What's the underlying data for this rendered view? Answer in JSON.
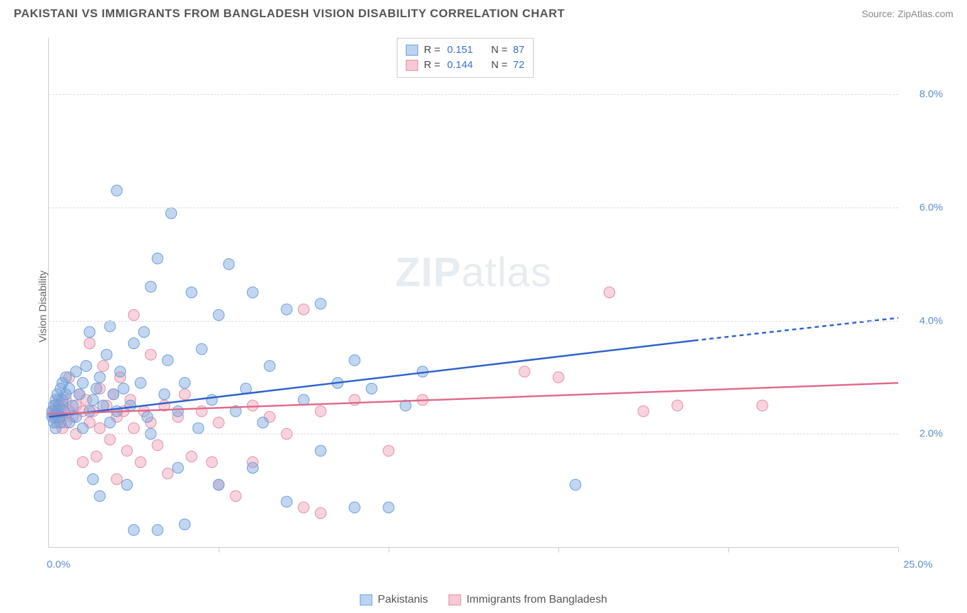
{
  "title": "PAKISTANI VS IMMIGRANTS FROM BANGLADESH VISION DISABILITY CORRELATION CHART",
  "source": "Source: ZipAtlas.com",
  "y_axis_label": "Vision Disability",
  "watermark_bold": "ZIP",
  "watermark_light": "atlas",
  "chart": {
    "type": "scatter",
    "xlim": [
      0,
      25
    ],
    "ylim": [
      0,
      9
    ],
    "x_ticks": [
      0,
      5,
      10,
      15,
      20,
      25
    ],
    "y_grid": [
      2,
      4,
      6,
      8
    ],
    "x_min_label": "0.0%",
    "x_max_label": "25.0%",
    "y_tick_labels": [
      "2.0%",
      "4.0%",
      "6.0%",
      "8.0%"
    ],
    "background_color": "#ffffff",
    "grid_color": "#dddddd",
    "axis_color": "#cccccc",
    "tick_label_color": "#5b8cc9",
    "marker_radius": 8,
    "marker_opacity": 0.55,
    "legend_stats": [
      {
        "swatch_fill": "#bcd4f0",
        "swatch_border": "#6a9fde",
        "r_value": "0.151",
        "n_value": "87"
      },
      {
        "swatch_fill": "#f5c8d4",
        "swatch_border": "#e38fa6",
        "r_value": "0.144",
        "n_value": "72"
      }
    ],
    "legend_r_label": "R =",
    "legend_n_label": "N =",
    "bottom_legend": [
      {
        "label": "Pakistanis",
        "swatch_fill": "#bcd4f0",
        "swatch_border": "#6a9fde"
      },
      {
        "label": "Immigrants from Bangladesh",
        "swatch_fill": "#f5c8d4",
        "swatch_border": "#e38fa6"
      }
    ],
    "series": [
      {
        "name": "Pakistanis",
        "color_fill": "rgba(120,165,220,0.45)",
        "color_stroke": "#6a9fde",
        "trend_color": "#2e62c9",
        "trend_width": 2.5,
        "trend_start": [
          0,
          2.3
        ],
        "trend_end_solid": [
          19,
          3.65
        ],
        "trend_end_dash": [
          25,
          4.05
        ],
        "points": [
          [
            0.1,
            2.3
          ],
          [
            0.1,
            2.4
          ],
          [
            0.15,
            2.5
          ],
          [
            0.15,
            2.2
          ],
          [
            0.2,
            2.35
          ],
          [
            0.2,
            2.6
          ],
          [
            0.2,
            2.1
          ],
          [
            0.25,
            2.4
          ],
          [
            0.25,
            2.7
          ],
          [
            0.3,
            2.5
          ],
          [
            0.3,
            2.3
          ],
          [
            0.35,
            2.8
          ],
          [
            0.35,
            2.2
          ],
          [
            0.4,
            2.6
          ],
          [
            0.4,
            2.9
          ],
          [
            0.45,
            2.4
          ],
          [
            0.5,
            2.7
          ],
          [
            0.5,
            3.0
          ],
          [
            0.6,
            2.2
          ],
          [
            0.6,
            2.8
          ],
          [
            0.7,
            2.5
          ],
          [
            0.8,
            3.1
          ],
          [
            0.8,
            2.3
          ],
          [
            0.9,
            2.7
          ],
          [
            1.0,
            2.9
          ],
          [
            1.0,
            2.1
          ],
          [
            1.1,
            3.2
          ],
          [
            1.2,
            2.4
          ],
          [
            1.2,
            3.8
          ],
          [
            1.3,
            2.6
          ],
          [
            1.3,
            1.2
          ],
          [
            1.4,
            2.8
          ],
          [
            1.5,
            3.0
          ],
          [
            1.5,
            0.9
          ],
          [
            1.6,
            2.5
          ],
          [
            1.7,
            3.4
          ],
          [
            1.8,
            2.2
          ],
          [
            1.8,
            3.9
          ],
          [
            1.9,
            2.7
          ],
          [
            2.0,
            6.3
          ],
          [
            2.0,
            2.4
          ],
          [
            2.1,
            3.1
          ],
          [
            2.2,
            2.8
          ],
          [
            2.3,
            1.1
          ],
          [
            2.4,
            2.5
          ],
          [
            2.5,
            3.6
          ],
          [
            2.5,
            0.3
          ],
          [
            2.7,
            2.9
          ],
          [
            2.8,
            3.8
          ],
          [
            2.9,
            2.3
          ],
          [
            3.0,
            4.6
          ],
          [
            3.0,
            2.0
          ],
          [
            3.2,
            5.1
          ],
          [
            3.2,
            0.3
          ],
          [
            3.4,
            2.7
          ],
          [
            3.5,
            3.3
          ],
          [
            3.6,
            5.9
          ],
          [
            3.8,
            2.4
          ],
          [
            3.8,
            1.4
          ],
          [
            4.0,
            2.9
          ],
          [
            4.0,
            0.4
          ],
          [
            4.2,
            4.5
          ],
          [
            4.4,
            2.1
          ],
          [
            4.5,
            3.5
          ],
          [
            4.8,
            2.6
          ],
          [
            5.0,
            4.1
          ],
          [
            5.0,
            1.1
          ],
          [
            5.3,
            5.0
          ],
          [
            5.5,
            2.4
          ],
          [
            5.8,
            2.8
          ],
          [
            6.0,
            4.5
          ],
          [
            6.0,
            1.4
          ],
          [
            6.3,
            2.2
          ],
          [
            6.5,
            3.2
          ],
          [
            7.0,
            4.2
          ],
          [
            7.0,
            0.8
          ],
          [
            7.5,
            2.6
          ],
          [
            8.0,
            4.3
          ],
          [
            8.0,
            1.7
          ],
          [
            8.5,
            2.9
          ],
          [
            9.0,
            3.3
          ],
          [
            9.0,
            0.7
          ],
          [
            9.5,
            2.8
          ],
          [
            10.0,
            0.7
          ],
          [
            10.5,
            2.5
          ],
          [
            11.0,
            3.1
          ],
          [
            15.5,
            1.1
          ]
        ]
      },
      {
        "name": "Immigrants from Bangladesh",
        "color_fill": "rgba(235,150,175,0.42)",
        "color_stroke": "#e38fa6",
        "trend_color": "#e06a8a",
        "trend_width": 2.5,
        "trend_start": [
          0,
          2.35
        ],
        "trend_end_solid": [
          25,
          2.9
        ],
        "trend_end_dash": null,
        "points": [
          [
            0.1,
            2.35
          ],
          [
            0.15,
            2.4
          ],
          [
            0.2,
            2.3
          ],
          [
            0.2,
            2.5
          ],
          [
            0.25,
            2.2
          ],
          [
            0.3,
            2.4
          ],
          [
            0.3,
            2.6
          ],
          [
            0.35,
            2.3
          ],
          [
            0.4,
            2.5
          ],
          [
            0.4,
            2.1
          ],
          [
            0.45,
            2.4
          ],
          [
            0.5,
            2.6
          ],
          [
            0.5,
            2.2
          ],
          [
            0.6,
            2.4
          ],
          [
            0.6,
            3.0
          ],
          [
            0.7,
            2.3
          ],
          [
            0.8,
            2.5
          ],
          [
            0.8,
            2.0
          ],
          [
            0.9,
            2.7
          ],
          [
            1.0,
            2.4
          ],
          [
            1.0,
            1.5
          ],
          [
            1.1,
            2.6
          ],
          [
            1.2,
            2.2
          ],
          [
            1.2,
            3.6
          ],
          [
            1.3,
            2.4
          ],
          [
            1.4,
            1.6
          ],
          [
            1.5,
            2.8
          ],
          [
            1.5,
            2.1
          ],
          [
            1.6,
            3.2
          ],
          [
            1.7,
            2.5
          ],
          [
            1.8,
            1.9
          ],
          [
            1.9,
            2.7
          ],
          [
            2.0,
            2.3
          ],
          [
            2.0,
            1.2
          ],
          [
            2.1,
            3.0
          ],
          [
            2.2,
            2.4
          ],
          [
            2.3,
            1.7
          ],
          [
            2.4,
            2.6
          ],
          [
            2.5,
            2.1
          ],
          [
            2.5,
            4.1
          ],
          [
            2.7,
            1.5
          ],
          [
            2.8,
            2.4
          ],
          [
            3.0,
            2.2
          ],
          [
            3.0,
            3.4
          ],
          [
            3.2,
            1.8
          ],
          [
            3.4,
            2.5
          ],
          [
            3.5,
            1.3
          ],
          [
            3.8,
            2.3
          ],
          [
            4.0,
            2.7
          ],
          [
            4.2,
            1.6
          ],
          [
            4.5,
            2.4
          ],
          [
            4.8,
            1.5
          ],
          [
            5.0,
            2.2
          ],
          [
            5.0,
            1.1
          ],
          [
            5.5,
            0.9
          ],
          [
            6.0,
            2.5
          ],
          [
            6.0,
            1.5
          ],
          [
            6.5,
            2.3
          ],
          [
            7.0,
            2.0
          ],
          [
            7.5,
            4.2
          ],
          [
            7.5,
            0.7
          ],
          [
            8.0,
            2.4
          ],
          [
            8.0,
            0.6
          ],
          [
            9.0,
            2.6
          ],
          [
            10.0,
            1.7
          ],
          [
            11.0,
            2.6
          ],
          [
            14.0,
            3.1
          ],
          [
            15.0,
            3.0
          ],
          [
            16.5,
            4.5
          ],
          [
            17.5,
            2.4
          ],
          [
            18.5,
            2.5
          ],
          [
            21.0,
            2.5
          ]
        ]
      }
    ]
  }
}
